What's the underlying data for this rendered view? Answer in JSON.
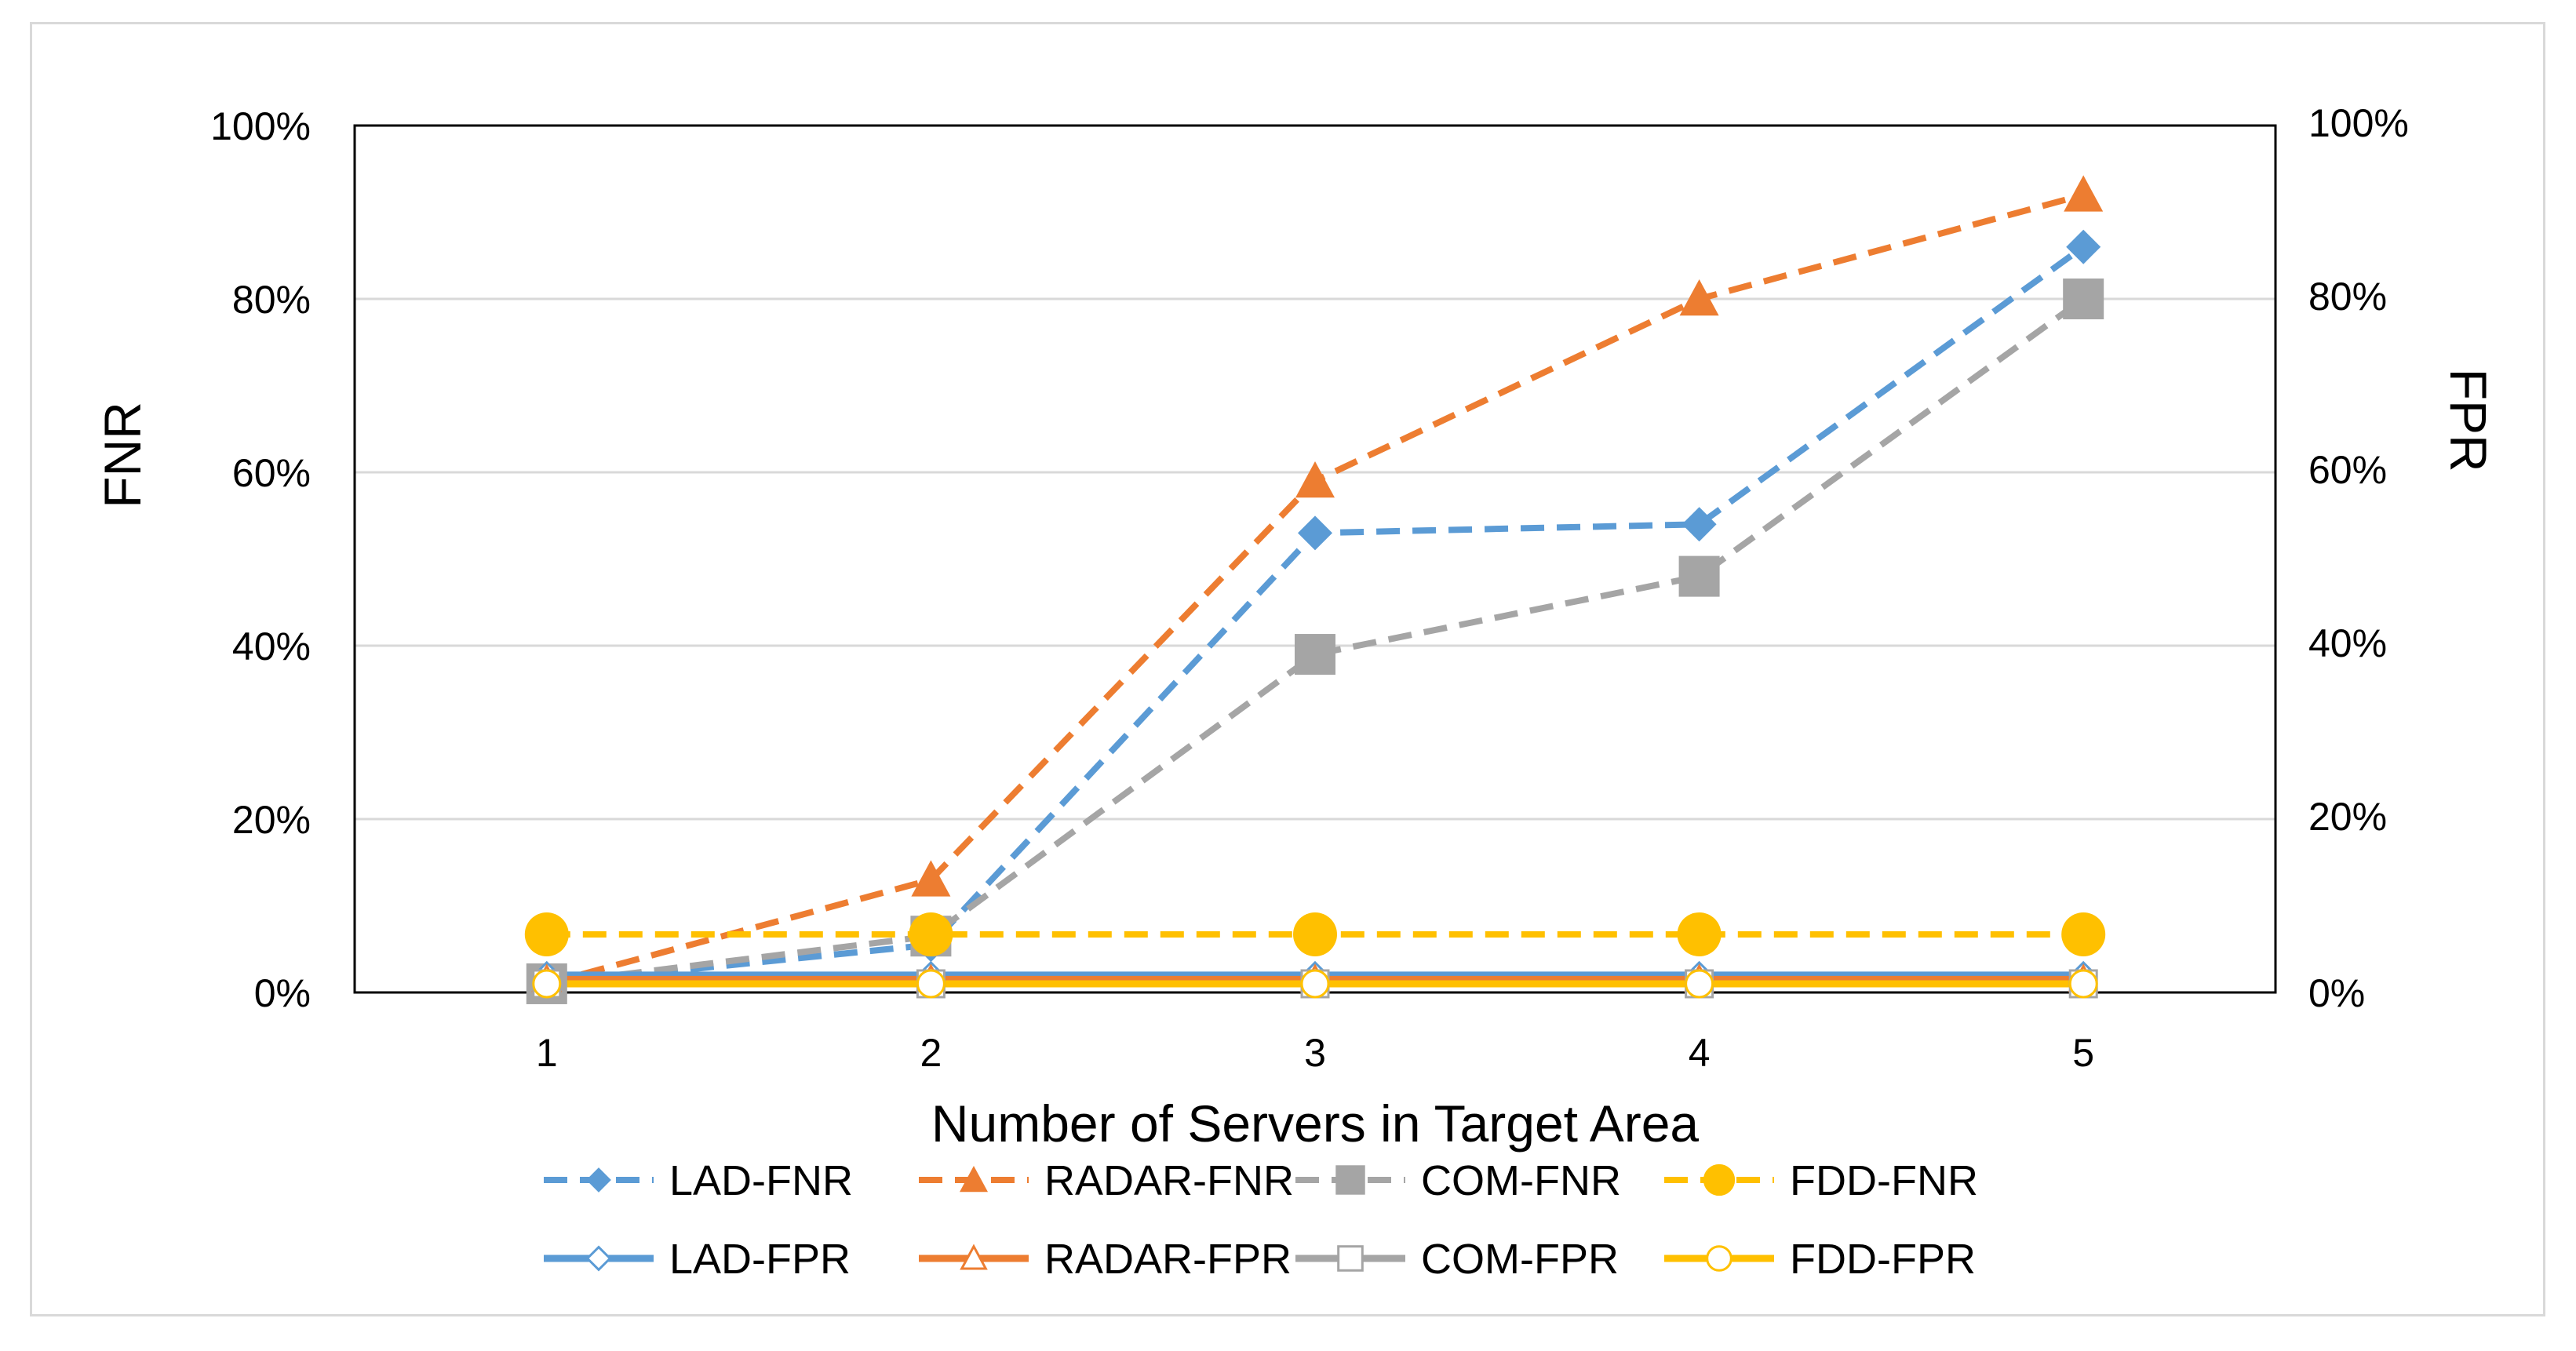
{
  "chart_data": {
    "type": "line",
    "title": "",
    "xlabel": "Number of Servers in Target Area",
    "ylabel": "FNR",
    "y2label": "FPR",
    "categories": [
      "1",
      "2",
      "3",
      "4",
      "5"
    ],
    "ylim": [
      0,
      1
    ],
    "y2lim": [
      0,
      1
    ],
    "y_ticks": [
      "0%",
      "20%",
      "40%",
      "60%",
      "80%",
      "100%"
    ],
    "y2_ticks": [
      "0%",
      "20%",
      "40%",
      "60%",
      "80%",
      "100%"
    ],
    "grid": true,
    "legend_position": "bottom",
    "series": [
      {
        "name": "LAD-FNR",
        "axis": "left",
        "color": "#5b9bd5",
        "dash": "dashed",
        "marker": "diamond",
        "filled": true,
        "values": [
          0.01,
          0.055,
          0.53,
          0.54,
          0.86
        ]
      },
      {
        "name": "RADAR-FNR",
        "axis": "left",
        "color": "#ed7d31",
        "dash": "dashed",
        "marker": "triangle",
        "filled": true,
        "values": [
          0.01,
          0.13,
          0.59,
          0.8,
          0.92
        ]
      },
      {
        "name": "COM-FNR",
        "axis": "left",
        "color": "#a5a5a5",
        "dash": "dashed",
        "marker": "square",
        "filled": true,
        "values": [
          0.01,
          0.065,
          0.39,
          0.48,
          0.8
        ]
      },
      {
        "name": "FDD-FNR",
        "axis": "left",
        "color": "#ffc000",
        "dash": "dashed",
        "marker": "circle",
        "filled": true,
        "values": [
          0.067,
          0.067,
          0.067,
          0.067,
          0.067
        ]
      },
      {
        "name": "LAD-FPR",
        "axis": "right",
        "color": "#5b9bd5",
        "dash": "solid",
        "marker": "diamond",
        "filled": false,
        "values": [
          0.02,
          0.02,
          0.02,
          0.02,
          0.02
        ]
      },
      {
        "name": "RADAR-FPR",
        "axis": "right",
        "color": "#ed7d31",
        "dash": "solid",
        "marker": "triangle",
        "filled": false,
        "values": [
          0.015,
          0.015,
          0.015,
          0.015,
          0.015
        ]
      },
      {
        "name": "COM-FPR",
        "axis": "right",
        "color": "#a5a5a5",
        "dash": "solid",
        "marker": "square",
        "filled": false,
        "values": [
          0.01,
          0.01,
          0.01,
          0.01,
          0.01
        ]
      },
      {
        "name": "FDD-FPR",
        "axis": "right",
        "color": "#ffc000",
        "dash": "solid",
        "marker": "circle",
        "filled": false,
        "values": [
          0.01,
          0.01,
          0.01,
          0.01,
          0.01
        ]
      }
    ]
  }
}
